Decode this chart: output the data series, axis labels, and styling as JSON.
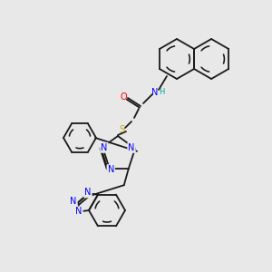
{
  "background_color": "#e8e8e8",
  "bond_color": "#1a1a1a",
  "atom_colors": {
    "N": "#0000ff",
    "O": "#ff0000",
    "S": "#ccaa00",
    "H": "#00aaaa",
    "C": "#000000"
  },
  "figsize": [
    3.0,
    3.0
  ],
  "dpi": 100
}
